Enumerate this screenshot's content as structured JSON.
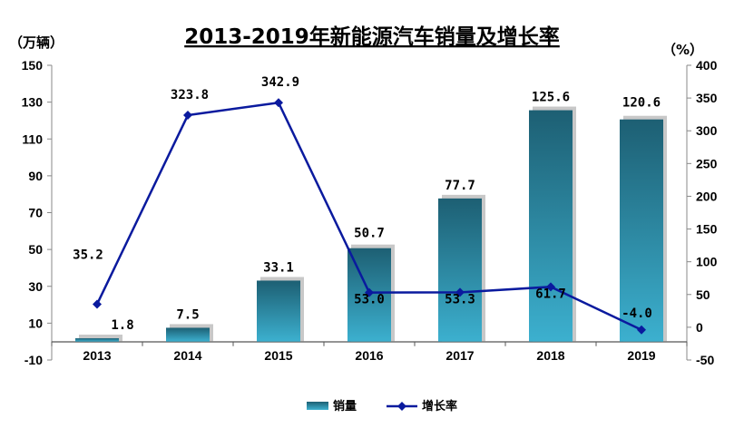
{
  "chart_data": {
    "type": "bar+line",
    "title": "2013-2019年新能源汽车销量及增长率",
    "left_unit": "（万辆）",
    "right_unit": "（%）",
    "categories": [
      "2013",
      "2014",
      "2015",
      "2016",
      "2017",
      "2018",
      "2019"
    ],
    "series": [
      {
        "name": "销量",
        "type": "bar",
        "axis": "left",
        "values": [
          1.8,
          7.5,
          33.1,
          50.7,
          77.7,
          125.6,
          120.6
        ],
        "labels": [
          "1.8",
          "7.5",
          "33.1",
          "50.7",
          "77.7",
          "125.6",
          "120.6"
        ],
        "color": "#3aa6c4"
      },
      {
        "name": "增长率",
        "type": "line",
        "axis": "right",
        "values": [
          35.2,
          323.8,
          342.9,
          53.0,
          53.3,
          61.7,
          -4.0
        ],
        "labels": [
          "35.2",
          "323.8",
          "342.9",
          "53.0",
          "53.3",
          "61.7",
          "-4.0"
        ],
        "color": "#0a1a9e"
      }
    ],
    "left_axis": {
      "min": -10,
      "max": 150,
      "ticks": [
        "-10",
        "10",
        "30",
        "50",
        "70",
        "90",
        "110",
        "130",
        "150"
      ]
    },
    "right_axis": {
      "min": -50,
      "max": 400,
      "ticks": [
        "-50",
        "0",
        "50",
        "100",
        "150",
        "200",
        "250",
        "300",
        "350",
        "400"
      ]
    },
    "grid": false,
    "legend_position": "bottom-center"
  }
}
